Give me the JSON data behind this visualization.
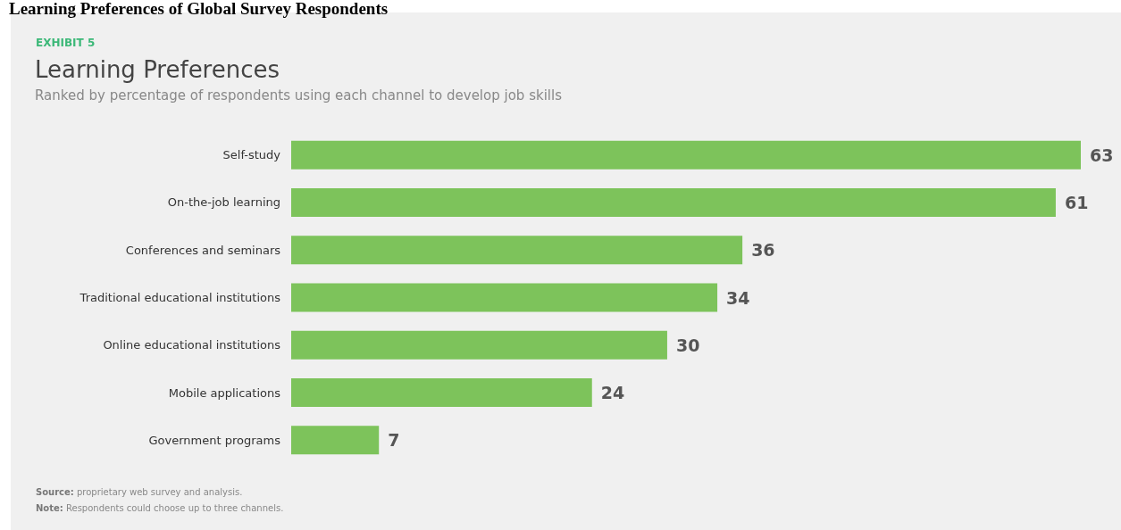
{
  "chart_data": {
    "type": "bar",
    "orientation": "horizontal",
    "title": "Learning Preferences",
    "subtitle": "Ranked by percentage of respondents using each channel to develop job skills",
    "categories": [
      "Self-study",
      "On-the-job learning",
      "Conferences and seminars",
      "Traditional educational institutions",
      "Online educational institutions",
      "Mobile applications",
      "Government programs"
    ],
    "values": [
      63,
      61,
      36,
      34,
      30,
      24,
      7
    ],
    "color": "#7dc35b",
    "data_labels": true,
    "tick_labels": "y",
    "annotations": [
      "Learning Preferences of Global Survey Respondents",
      "EXHIBIT 5",
      "Source: proprietary web survey and analysis.",
      "Note: Respondents could choose up to three channels."
    ]
  }
}
